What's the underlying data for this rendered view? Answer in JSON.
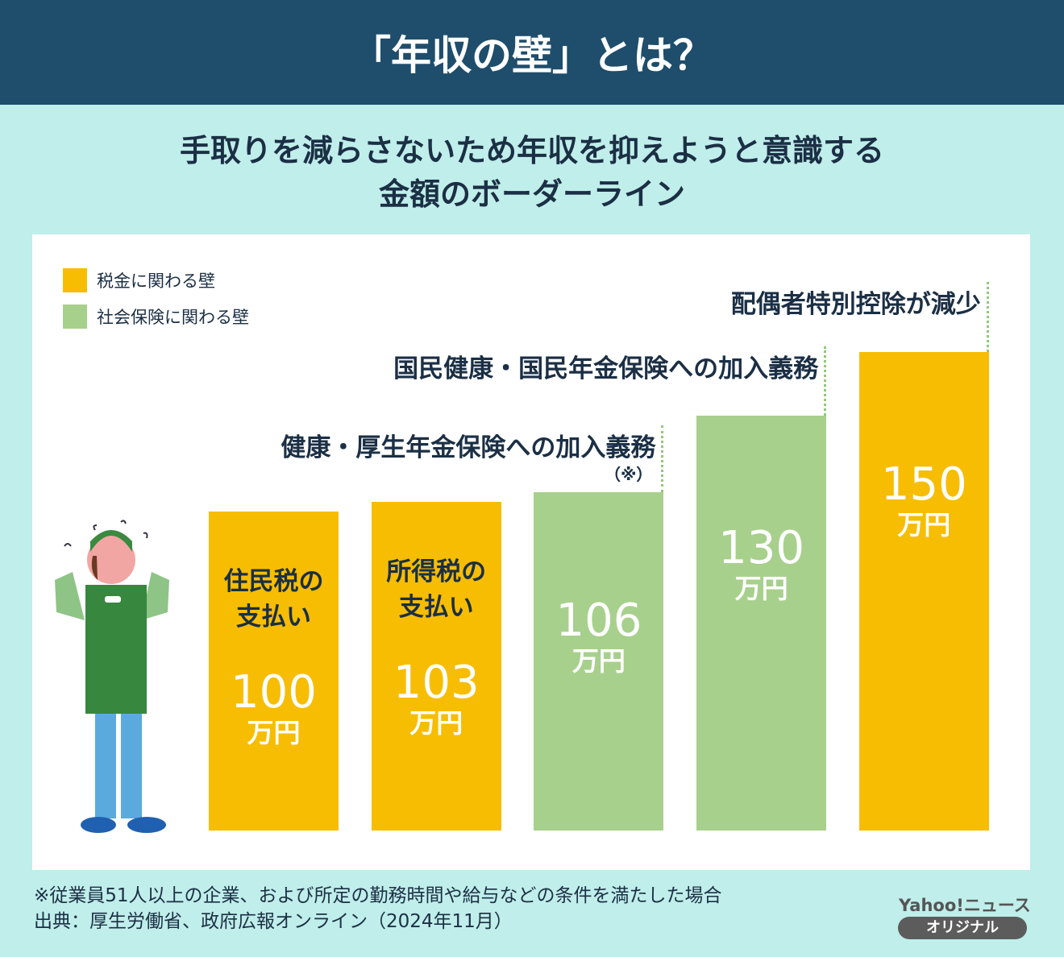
{
  "title": "「年収の壁」とは？",
  "subtitle": {
    "line1": "手取りを減らさないため年収を抑えようと意識する",
    "line2": "金額のボーダーライン"
  },
  "colors": {
    "tax": "#f7bd03",
    "social": "#a8d08d",
    "header": "#1f4d6c",
    "background": "#c0eeea"
  },
  "legend": [
    {
      "label": "税金に関わる壁",
      "color": "#f7bd03"
    },
    {
      "label": "社会保険に関わる壁",
      "color": "#a8d08d"
    }
  ],
  "chart_data": {
    "type": "bar",
    "categories": [
      "住民税の支払い",
      "所得税の支払い",
      "健康・厚生年金保険への加入義務",
      "国民健康・国民年金保険への加入義務",
      "配偶者特別控除が減少"
    ],
    "values": [
      100,
      103,
      106,
      130,
      150
    ],
    "unit": "万円",
    "series_group": [
      "tax",
      "tax",
      "social",
      "social",
      "tax"
    ],
    "in_bar_labels": [
      "住民税の\n支払い",
      "所得税の\n支払い",
      "",
      "",
      ""
    ],
    "annotations": [
      "",
      "",
      "健康・厚生年金保険への加入義務",
      "国民健康・国民年金保険への加入義務",
      "配偶者特別控除が減少"
    ],
    "annotation_note": "（※）",
    "ylim": [
      0,
      150
    ]
  },
  "footnotes": {
    "note": "※従業員51人以上の企業、および所定の勤務時間や給与などの条件を満たした場合",
    "source": "出典：厚生労働省、政府広報オンライン（2024年11月）"
  },
  "brand": {
    "name": "Yahoo!ニュース",
    "badge": "オリジナル"
  },
  "illustration": "worried-worker-in-green-apron"
}
